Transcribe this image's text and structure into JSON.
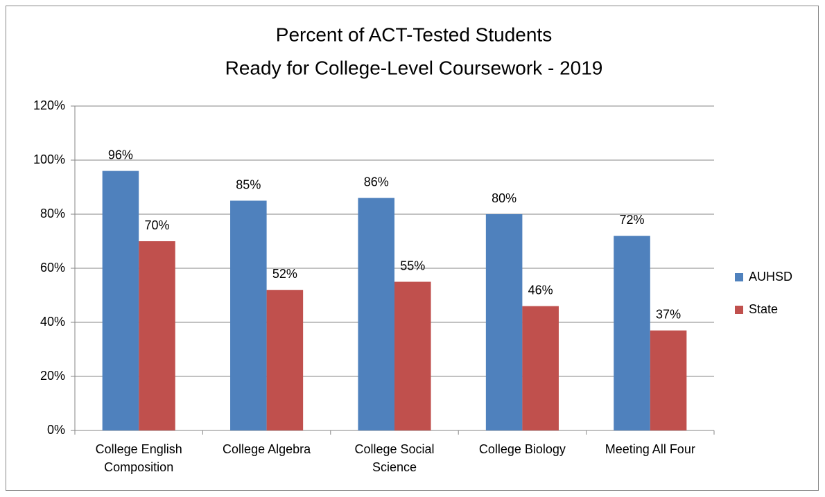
{
  "chart_data": {
    "type": "bar",
    "title": [
      "Percent of ACT-Tested Students",
      "Ready for College-Level Coursework - 2019"
    ],
    "categories": [
      "College English Composition",
      "College Algebra",
      "College Social Science",
      "College Biology",
      "Meeting All Four"
    ],
    "series": [
      {
        "name": "AUHSD",
        "color": "#4f81bd",
        "values": [
          96,
          85,
          86,
          80,
          72
        ],
        "value_labels": [
          "96%",
          "85%",
          "86%",
          "80%",
          "72%"
        ]
      },
      {
        "name": "State",
        "color": "#c0504d",
        "values": [
          70,
          52,
          55,
          46,
          37
        ],
        "value_labels": [
          "70%",
          "52%",
          "55%",
          "46%",
          "37%"
        ]
      }
    ],
    "ylim": [
      0,
      120
    ],
    "yticks": [
      {
        "value": 0,
        "label": "0%"
      },
      {
        "value": 20,
        "label": "20%"
      },
      {
        "value": 40,
        "label": "40%"
      },
      {
        "value": 60,
        "label": "60%"
      },
      {
        "value": 80,
        "label": "80%"
      },
      {
        "value": 100,
        "label": "100%"
      },
      {
        "value": 120,
        "label": "120%"
      }
    ],
    "grid": true,
    "legend": "right"
  }
}
